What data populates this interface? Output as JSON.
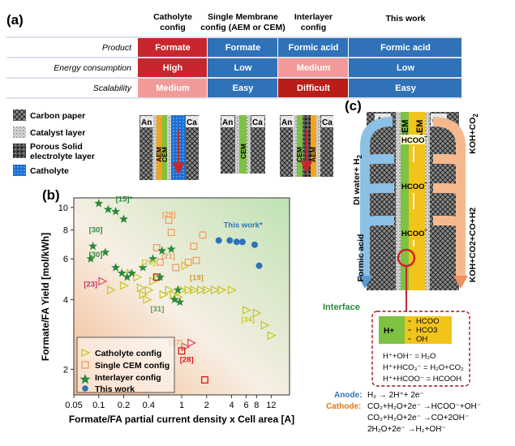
{
  "panel_labels": {
    "a": "(a)",
    "b": "(b)",
    "c": "(c)"
  },
  "table": {
    "columns": [
      [
        "Catholyte",
        "config"
      ],
      [
        "Single Membrane",
        "config (AEM or CEM)"
      ],
      [
        "Interlayer",
        "config"
      ],
      [
        "This work"
      ]
    ],
    "rows": [
      {
        "label": "Product",
        "cells": [
          "Formate",
          "Formate",
          "Formic acid",
          "Formic acid"
        ]
      },
      {
        "label": "Energy consumption",
        "cells": [
          "High",
          "Low",
          "Medium",
          "Low"
        ]
      },
      {
        "label": "Scalability",
        "cells": [
          "Medium",
          "Easy",
          "Difficult",
          "Easy"
        ]
      }
    ],
    "colors": {
      "deep_red": "#c8262c",
      "pink": "#f29a9a",
      "blue": "#2f72b8",
      "dark_red": "#b81d18",
      "grid": "#b8c4d8"
    }
  },
  "legend_materials": [
    "Carbon paper",
    "Catalyst layer",
    "Porous Solid",
    "electrolyte layer",
    "Catholyte"
  ],
  "schematics": [
    {
      "an": "An",
      "ca": "Ca",
      "membranes": [
        "AEM",
        "CEM"
      ]
    },
    {
      "an": "An",
      "ca": "Ca",
      "membranes": [
        "CEM"
      ]
    },
    {
      "an": "An",
      "ca": "Ca",
      "membranes": [
        "CEM",
        "AEM"
      ]
    }
  ],
  "chart_data": {
    "type": "scatter",
    "xlabel": "Formate/FA partial current density x Cell area [A]",
    "ylabel": "Formate/FA Yield [mol/kWh]",
    "xscale": "log",
    "yscale": "log",
    "xlim": [
      0.05,
      20
    ],
    "ylim": [
      1.55,
      11
    ],
    "xticks": [
      0.05,
      0.1,
      0.2,
      0.4,
      1,
      2,
      4,
      6,
      8,
      12
    ],
    "xtick_labels": [
      "0.05",
      "0.1",
      "0.2",
      "0.4",
      "1",
      "2",
      "4",
      "6",
      "8",
      "12"
    ],
    "yticks": [
      2,
      4,
      6,
      8,
      10
    ],
    "ytick_labels": [
      "2",
      "4",
      "6",
      "8",
      "10"
    ],
    "series": [
      {
        "name": "Catholyte config",
        "marker": "triangle-open",
        "color": "#c8c830",
        "points": [
          [
            0.14,
            4.4
          ],
          [
            0.2,
            4.6
          ],
          [
            0.24,
            5.2
          ],
          [
            0.29,
            5.0
          ],
          [
            0.32,
            4.5
          ],
          [
            0.34,
            4.2
          ],
          [
            0.38,
            4.0
          ],
          [
            0.4,
            4.4
          ],
          [
            0.45,
            4.8
          ],
          [
            0.52,
            5.0
          ],
          [
            0.6,
            4.2
          ],
          [
            0.7,
            4.4
          ],
          [
            0.8,
            4.2
          ],
          [
            0.9,
            4.1
          ],
          [
            1.0,
            4.4
          ],
          [
            1.1,
            5.6
          ],
          [
            1.2,
            4.4
          ],
          [
            1.4,
            4.4
          ],
          [
            1.7,
            4.4
          ],
          [
            2.0,
            4.4
          ],
          [
            2.5,
            4.4
          ],
          [
            3.0,
            4.4
          ],
          [
            4.0,
            4.4
          ],
          [
            6.0,
            3.6
          ],
          [
            8.0,
            3.5
          ],
          [
            10.0,
            3.1
          ],
          [
            12.0,
            2.8
          ]
        ]
      },
      {
        "name": "Catholyte config (red)",
        "marker": "triangle-open",
        "color": "#e05060",
        "points": [
          [
            0.11,
            4.8
          ],
          [
            1.1,
            2.5
          ],
          [
            1.3,
            2.6
          ]
        ]
      },
      {
        "name": "Single CEM config",
        "marker": "square-open",
        "color": "#f0a060",
        "points": [
          [
            0.5,
            6.7
          ],
          [
            0.7,
            8.8
          ],
          [
            0.75,
            7.8
          ],
          [
            1.2,
            5.8
          ],
          [
            1.5,
            5.9
          ],
          [
            1.4,
            6.8
          ],
          [
            1.8,
            7.6
          ],
          [
            0.55,
            5.8
          ],
          [
            0.85,
            5.5
          ]
        ]
      },
      {
        "name": "Single CEM config (red)",
        "marker": "square-open",
        "color": "#d81818",
        "points": [
          [
            0.5,
            5.0
          ],
          [
            1.0,
            2.4
          ],
          [
            1.9,
            1.8
          ]
        ]
      },
      {
        "name": "Interlayer config",
        "marker": "star",
        "color": "#2a8a3a",
        "points": [
          [
            0.085,
            6.8
          ],
          [
            0.08,
            6.0
          ],
          [
            0.1,
            10.4
          ],
          [
            0.13,
            9.8
          ],
          [
            0.16,
            9.6
          ],
          [
            0.2,
            8.9
          ],
          [
            0.12,
            6.4
          ],
          [
            0.16,
            5.5
          ],
          [
            0.19,
            5.2
          ],
          [
            0.22,
            5.0
          ],
          [
            0.25,
            5.2
          ],
          [
            0.34,
            5.5
          ],
          [
            0.45,
            6.0
          ],
          [
            0.55,
            5.0
          ],
          [
            0.58,
            6.5
          ],
          [
            0.75,
            6.6
          ],
          [
            0.9,
            4.4
          ],
          [
            0.82,
            4.0
          ],
          [
            0.95,
            3.9
          ]
        ]
      },
      {
        "name": "This work",
        "marker": "circle",
        "color": "#2f72b8",
        "points": [
          [
            2.8,
            7.2
          ],
          [
            3.8,
            7.2
          ],
          [
            4.6,
            7.1
          ],
          [
            5.4,
            7.1
          ],
          [
            7.6,
            6.9
          ],
          [
            8.6,
            5.6
          ]
        ]
      }
    ],
    "annotations": [
      {
        "text": "[15]*",
        "at": [
          0.16,
          10.6
        ],
        "color": "#2a8a3a"
      },
      {
        "text": "[30]",
        "at": [
          0.076,
          7.8
        ],
        "color": "#2a8a3a"
      },
      {
        "text": "[30]",
        "at": [
          0.076,
          6.1
        ],
        "color": "#2a8a3a"
      },
      {
        "text": "[23]",
        "at": [
          0.066,
          4.55
        ],
        "color": "#c0386a"
      },
      {
        "text": "[26]",
        "at": [
          0.33,
          5.65
        ],
        "color": "#c8c830"
      },
      {
        "text": "[21]",
        "at": [
          0.57,
          6.0
        ],
        "color": "#f0a060"
      },
      {
        "text": "[29]",
        "at": [
          0.58,
          9.1
        ],
        "color": "#f0a060"
      },
      {
        "text": "[19]",
        "at": [
          1.25,
          4.85
        ],
        "color": "#c8a020"
      },
      {
        "text": "[31]",
        "at": [
          0.42,
          3.55
        ],
        "color": "#5aa05a"
      },
      {
        "text": "[34]",
        "at": [
          5.2,
          3.2
        ],
        "color": "#c8c830"
      },
      {
        "text": "[27]",
        "at": [
          0.7,
          2.55
        ],
        "color": "#f0a060"
      },
      {
        "text": "[28]",
        "at": [
          0.95,
          2.15
        ],
        "color": "#d81818"
      },
      {
        "text": "This work*",
        "at": [
          3.2,
          8.2
        ],
        "color": "#2f72b8"
      }
    ],
    "legend": {
      "position": "bottom-left",
      "entries": [
        "Catholyte config",
        "Single CEM config",
        "Interlayer config",
        "This work"
      ]
    }
  },
  "panel_c": {
    "an": "An",
    "ca": "Ca",
    "cem": "CEM",
    "aem": "AEM",
    "left_top": "DI water+ H",
    "left_top_sub": "2",
    "left_bottom": "Formic acid",
    "right_top": "KOH+CO",
    "right_top_sub": "2",
    "right_bottom": "KOH+CO2+CO+H2",
    "ions": [
      "HCOO",
      "HCOO",
      "HCOO"
    ],
    "interface_label": "Interface",
    "zoom_ions": [
      "HCOO",
      "HCO3",
      "OH"
    ],
    "proton": "H+",
    "reactions": [
      "H⁺+OH⁻ = H₂O",
      "H⁺+HCO₃⁻ = H₂O+CO₂",
      "H⁺+HCOO⁻ = HCOOH"
    ]
  },
  "equations": {
    "anode_label": "Anode:",
    "anode": "H₂ → 2H⁺+ 2e⁻",
    "cathode_label": "Cathode:",
    "cathode": [
      "CO₂+H₂O+2e⁻ →HCOO⁻+OH⁻",
      "CO₂+H₂O+2e⁻ →CO+2OH⁻",
      "2H₂O+2e⁻ →H₂+OH⁻"
    ]
  }
}
